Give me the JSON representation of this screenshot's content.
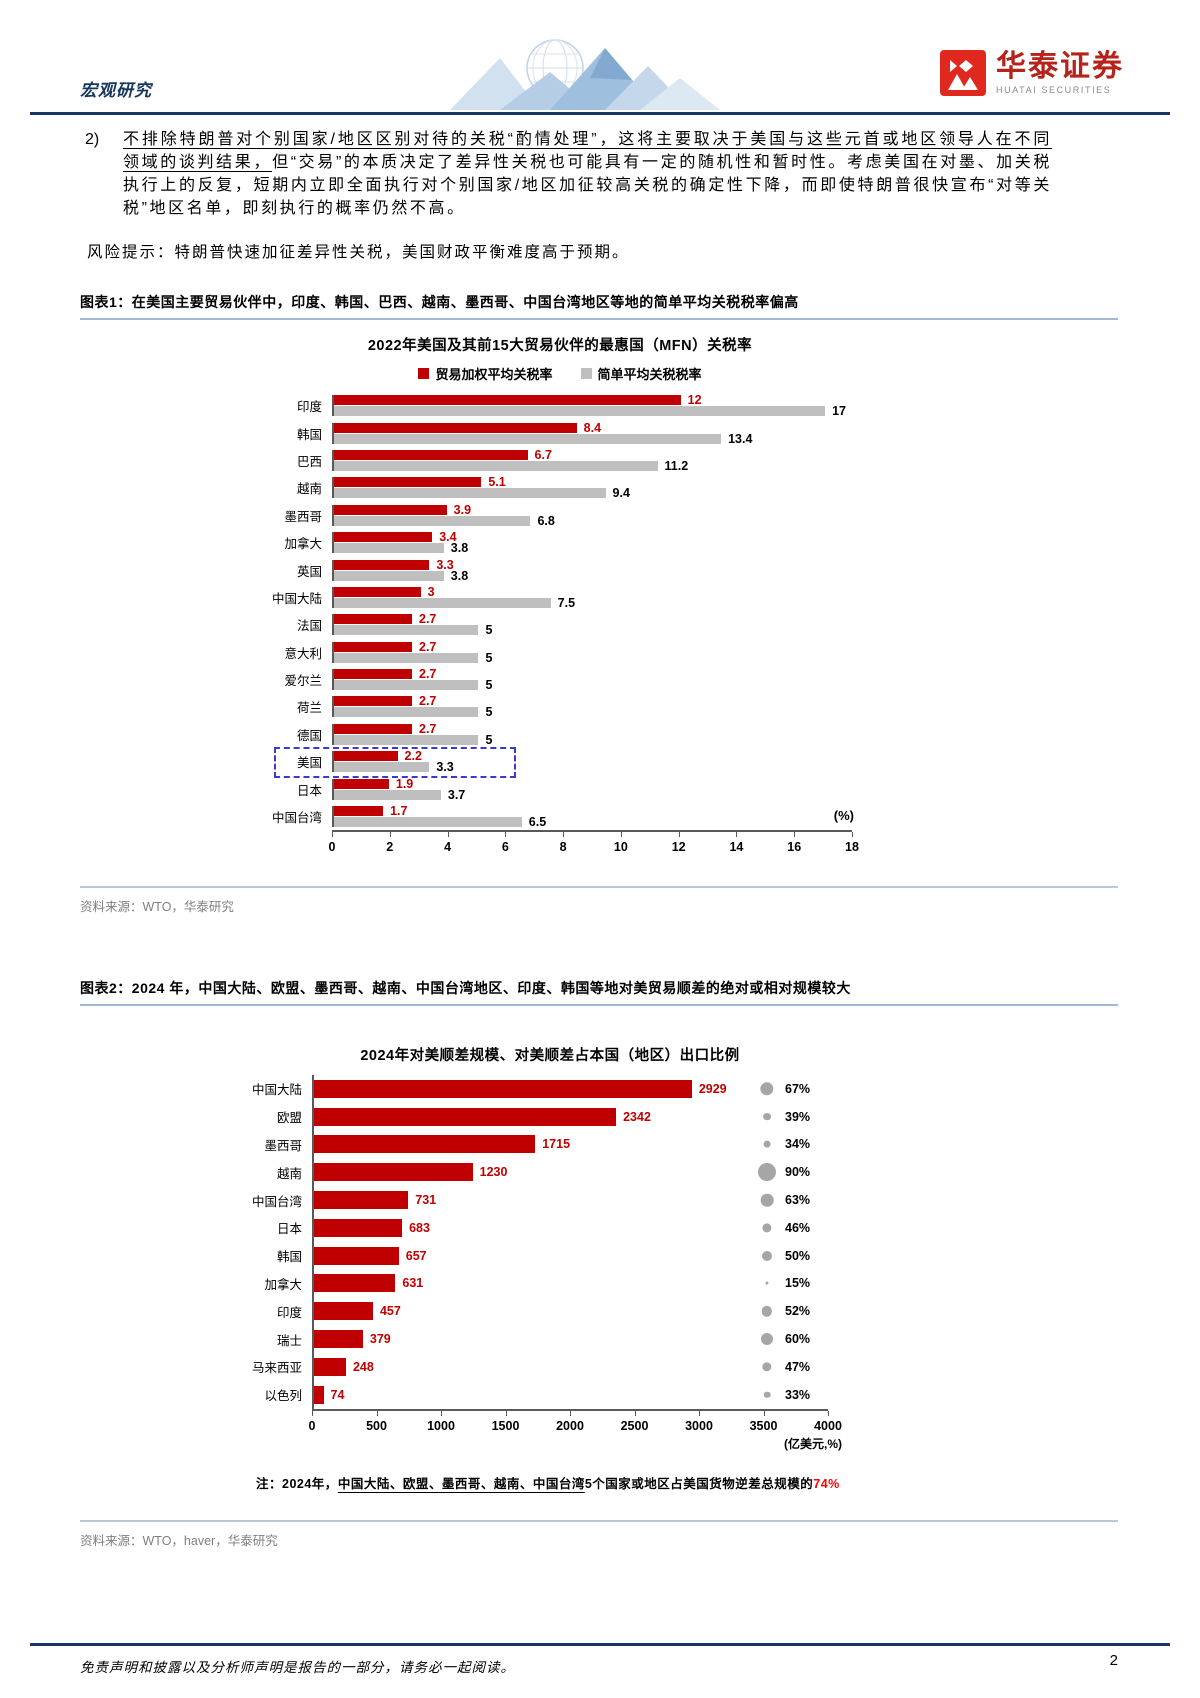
{
  "header": {
    "section_label": "宏观研究",
    "brand_cn": "华泰证券",
    "brand_en": "HUATAI SECURITIES"
  },
  "body": {
    "item_number": "2)",
    "underlined_text": "不排除特朗普对个别国家/地区区别对待的关税“酌情处理”，这将主要取决于美国与这些元首或地区领导人在不同领域的谈判结果，",
    "rest_text": "但“交易”的本质决定了差异性关税也可能具有一定的随机性和暂时性。考虑美国在对墨、加关税执行上的反复，短期内立即全面执行对个别国家/地区加征较高关税的确定性下降，而即使特朗普很快宣布“对等关税”地区名单，即刻执行的概率仍然不高。",
    "risk_text": "风险提示：特朗普快速加征差异性关税，美国财政平衡难度高于预期。"
  },
  "figure1": {
    "heading": "图表1：在美国主要贸易伙伴中，印度、韩国、巴西、越南、墨西哥、中国台湾地区等地的简单平均关税税率偏高",
    "source": "资料来源：WTO，华泰研究"
  },
  "figure2": {
    "heading": "图表2：2024 年，中国大陆、欧盟、墨西哥、越南、中国台湾地区、印度、韩国等地对美贸易顺差的绝对或相对规模较大",
    "note_prefix": "注：2024年，",
    "note_underlined": "中国大陆、欧盟、墨西哥、越南、中国台湾",
    "note_middle": "5个国家或地区占美国货物逆差总规模的",
    "note_highlight": "74%",
    "source": "资料来源：WTO，haver，华泰研究"
  },
  "footer": {
    "disclaimer": "免责声明和披露以及分析师声明是报告的一部分，请务必一起阅读。",
    "page_number": "2"
  },
  "colors": {
    "bar_red": "#c00000",
    "bar_gray": "#bfbfbf",
    "bubble_gray": "#a6a6a6",
    "rule_navy": "#17375e",
    "note_highlight_red": "#ff0000"
  },
  "chart_data": [
    {
      "type": "bar",
      "orientation": "horizontal",
      "title": "2022年美国及其前15大贸易伙伴的最惠国（MFN）关税率",
      "categories": [
        "印度",
        "韩国",
        "巴西",
        "越南",
        "墨西哥",
        "加拿大",
        "英国",
        "中国大陆",
        "法国",
        "意大利",
        "爱尔兰",
        "荷兰",
        "德国",
        "美国",
        "日本",
        "中国台湾"
      ],
      "series": [
        {
          "name": "贸易加权平均关税率",
          "color": "#c00000",
          "values": [
            12,
            8.4,
            6.7,
            5.1,
            3.9,
            3.4,
            3.3,
            3,
            2.7,
            2.7,
            2.7,
            2.7,
            2.7,
            2.2,
            1.9,
            1.7
          ]
        },
        {
          "name": "简单平均关税税率",
          "color": "#bfbfbf",
          "values": [
            17,
            13.4,
            11.2,
            9.4,
            6.8,
            3.8,
            3.8,
            7.5,
            5,
            5,
            5,
            5,
            5,
            3.3,
            3.7,
            6.5
          ]
        }
      ],
      "xlim": [
        0,
        18
      ],
      "x_ticks": [
        0,
        2,
        4,
        6,
        8,
        10,
        12,
        14,
        16,
        18
      ],
      "unit_label": "(%)",
      "highlighted_category": "美国",
      "grid": false,
      "legend_position": "top"
    },
    {
      "type": "bar",
      "orientation": "horizontal",
      "title": "2024年对美顺差规模、对美顺差占本国（地区）出口比例",
      "categories": [
        "中国大陆",
        "欧盟",
        "墨西哥",
        "越南",
        "中国台湾",
        "日本",
        "韩国",
        "加拿大",
        "印度",
        "瑞士",
        "马来西亚",
        "以色列"
      ],
      "series": [
        {
          "name": "对美顺差规模（亿美元）",
          "color": "#c00000",
          "values": [
            2929,
            2342,
            1715,
            1230,
            731,
            683,
            657,
            631,
            457,
            379,
            248,
            74
          ]
        }
      ],
      "bubble_percents": [
        67,
        39,
        34,
        90,
        63,
        46,
        50,
        15,
        52,
        60,
        47,
        33
      ],
      "xlim": [
        0,
        4000
      ],
      "x_ticks": [
        0,
        500,
        1000,
        1500,
        2000,
        2500,
        3000,
        3500,
        4000
      ],
      "unit_label": "(亿美元,%)",
      "grid": false
    }
  ]
}
